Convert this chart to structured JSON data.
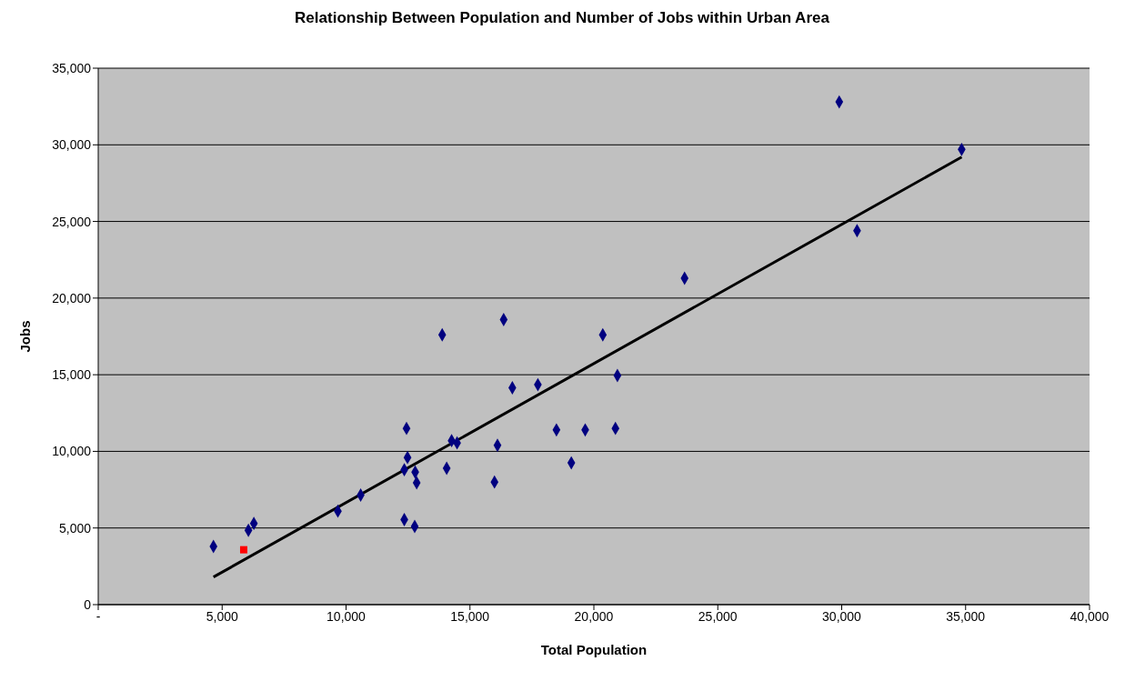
{
  "chart_data": {
    "type": "scatter",
    "title": "Relationship Between Population and Number of Jobs within Urban Area",
    "xlabel": "Total Population",
    "ylabel": "Jobs",
    "xlim": [
      0,
      40000
    ],
    "ylim": [
      0,
      35000
    ],
    "xticks": [
      {
        "value": 0,
        "label": "-"
      },
      {
        "value": 5000,
        "label": "5,000"
      },
      {
        "value": 10000,
        "label": "10,000"
      },
      {
        "value": 15000,
        "label": "15,000"
      },
      {
        "value": 20000,
        "label": "20,000"
      },
      {
        "value": 25000,
        "label": "25,000"
      },
      {
        "value": 30000,
        "label": "30,000"
      },
      {
        "value": 35000,
        "label": "35,000"
      },
      {
        "value": 40000,
        "label": "40,000"
      }
    ],
    "yticks": [
      0,
      {
        "value": 5000,
        "label": "5,000"
      },
      {
        "value": 10000,
        "label": "10,000"
      },
      {
        "value": 15000,
        "label": "15,000"
      },
      {
        "value": 20000,
        "label": "20,000"
      },
      {
        "value": 25000,
        "label": "25,000"
      },
      {
        "value": 30000,
        "label": "30,000"
      },
      {
        "value": 35000,
        "label": "35,000"
      }
    ],
    "grid": "y",
    "series": [
      {
        "marker": "diamond",
        "color": "#000080",
        "x": [
          4650,
          6060,
          6280,
          9670,
          10590,
          12440,
          12480,
          12350,
          12790,
          12850,
          12350,
          12770,
          14060,
          14260,
          14480,
          13880,
          16360,
          20360,
          20950,
          16710,
          17740,
          18490,
          19650,
          20870,
          16110,
          19090,
          15990,
          29900,
          34840,
          30620,
          23660
        ],
        "values": [
          3800,
          4850,
          5300,
          6100,
          7150,
          11500,
          9600,
          8800,
          8650,
          7950,
          5550,
          5100,
          8900,
          10700,
          10550,
          17600,
          18600,
          17600,
          14950,
          14150,
          14350,
          11400,
          11400,
          11500,
          10400,
          9250,
          8000,
          32800,
          29700,
          24400,
          21300
        ]
      },
      {
        "marker": "square",
        "color": "#ff0000",
        "x": [
          5870
        ],
        "values": [
          3580
        ]
      },
      {
        "type": "line",
        "marker": "none",
        "color": "#000000",
        "x": [
          4650,
          34840
        ],
        "values": [
          1800,
          29200
        ]
      }
    ]
  }
}
